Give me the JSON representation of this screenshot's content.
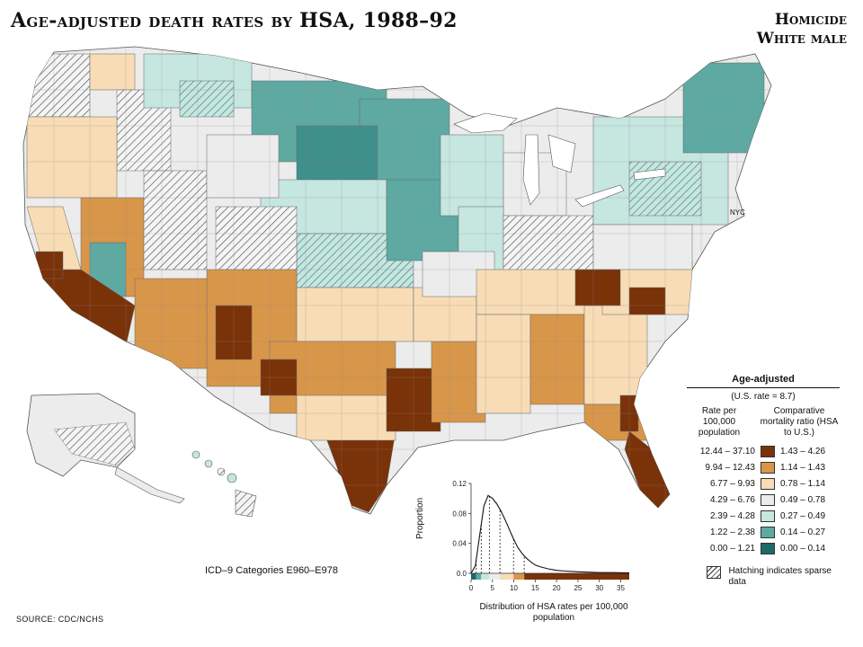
{
  "title": "Age-adjusted death rates by HSA, 1988–92",
  "subject": {
    "line1": "Homicide",
    "line2": "White male"
  },
  "map": {
    "nyc_label": "NYC",
    "colors": {
      "class7": "#7a3208",
      "class6": "#d8964a",
      "class5": "#f7dcb6",
      "class4": "#ececec",
      "class3": "#c6e6e0",
      "class2": "#5ea9a2",
      "class1": "#1b6a68"
    }
  },
  "icd_note": "ICD–9 Categories E960–E978",
  "source": "SOURCE:  CDC/NCHS",
  "legend": {
    "title": "Age-adjusted",
    "us_rate": "(U.S. rate = 8.7)",
    "col1_head": "Rate per 100,000 population",
    "col2_head": "Comparative mortality ratio (HSA to U.S.)",
    "rows": [
      {
        "rate": "12.44 – 37.10",
        "ratio": "1.43 – 4.26",
        "color": "#7a3208"
      },
      {
        "rate": "9.94 – 12.43",
        "ratio": "1.14 – 1.43",
        "color": "#d8964a"
      },
      {
        "rate": "6.77 –  9.93",
        "ratio": "0.78 – 1.14",
        "color": "#f7dcb6"
      },
      {
        "rate": "4.29 –  6.76",
        "ratio": "0.49 – 0.78",
        "color": "#ececec"
      },
      {
        "rate": "2.39 –  4.28",
        "ratio": "0.27 – 0.49",
        "color": "#c6e6e0"
      },
      {
        "rate": "1.22 –  2.38",
        "ratio": "0.14 – 0.27",
        "color": "#5ea9a2"
      },
      {
        "rate": "0.00 –  1.21",
        "ratio": "0.00 – 0.14",
        "color": "#1b6a68"
      }
    ],
    "hatch_note": "Hatching indicates sparse data"
  },
  "chart_data": {
    "type": "area",
    "xlabel": "Distribution of HSA rates per 100,000 population",
    "ylabel": "Proportion",
    "xlim": [
      0,
      37
    ],
    "ylim": [
      0,
      0.12
    ],
    "x_ticks": [
      0,
      5,
      10,
      15,
      20,
      25,
      30,
      35
    ],
    "y_ticks": [
      "0.0",
      "0.04",
      "0.08",
      "0.12"
    ],
    "x": [
      0,
      1,
      2,
      3,
      4,
      5,
      6,
      7,
      8,
      9,
      10,
      11,
      12,
      13,
      14,
      15,
      16,
      18,
      20,
      22,
      25,
      28,
      30,
      33,
      37
    ],
    "y": [
      0.0,
      0.01,
      0.05,
      0.09,
      0.104,
      0.1,
      0.093,
      0.083,
      0.071,
      0.058,
      0.045,
      0.034,
      0.026,
      0.02,
      0.015,
      0.011,
      0.009,
      0.006,
      0.004,
      0.003,
      0.002,
      0.0015,
      0.001,
      0.001,
      0.0005
    ],
    "class_breaks": [
      1.21,
      2.38,
      4.28,
      6.76,
      9.93,
      12.43,
      37.1
    ]
  }
}
